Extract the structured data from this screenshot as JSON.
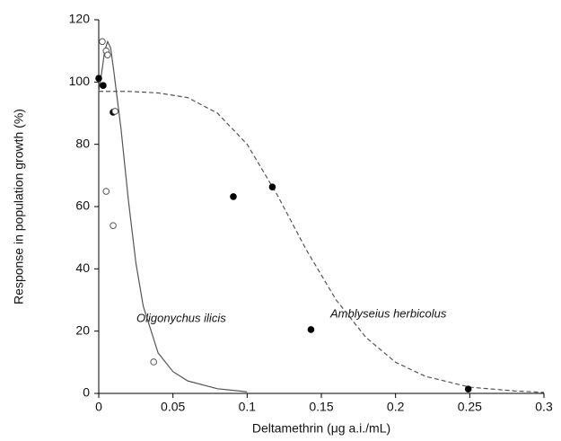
{
  "chart_data": {
    "type": "scatter",
    "x_label": "Deltamethrin (μg a.i./mL)",
    "y_label": "Response in population growth (%)",
    "annotations": [
      "Oligonychus ilicis",
      "Amblyseius herbicolus"
    ],
    "xlim": [
      0,
      0.3
    ],
    "ylim": [
      0,
      120
    ],
    "xticks": [
      0,
      0.05,
      0.1,
      0.15,
      0.2,
      0.25,
      0.3
    ],
    "yticks": [
      0,
      20,
      40,
      60,
      80,
      100,
      120
    ],
    "grid": false,
    "series": [
      {
        "kind": "points",
        "color": "#000000",
        "fill": "#000000",
        "x": [
          0,
          0.003,
          0.0097,
          0.0907,
          0.117,
          0.143,
          0.249
        ],
        "values": [
          101.2,
          98.9,
          90.3,
          63.2,
          66.3,
          20.5,
          1.4
        ]
      },
      {
        "kind": "points",
        "color": "#555555",
        "fill": "#ffffff",
        "x": [
          0.0024,
          0.005,
          0.006,
          0.011,
          0.005,
          0.0097,
          0.037
        ],
        "values": [
          113,
          110,
          108.7,
          90.6,
          64.9,
          53.9,
          10.1
        ]
      },
      {
        "kind": "line",
        "color": "#555555",
        "dashed": false,
        "x": [
          0,
          0.002,
          0.004,
          0.006,
          0.008,
          0.01,
          0.015,
          0.02,
          0.025,
          0.03,
          0.04,
          0.05,
          0.06,
          0.08,
          0.1
        ],
        "values": [
          97,
          103,
          110,
          113,
          111,
          104,
          85,
          62,
          42,
          28,
          13,
          7,
          4,
          1.5,
          0.5
        ]
      },
      {
        "kind": "line",
        "color": "#555555",
        "dashed": true,
        "x": [
          0,
          0.02,
          0.04,
          0.06,
          0.08,
          0.1,
          0.12,
          0.14,
          0.16,
          0.18,
          0.2,
          0.22,
          0.25,
          0.28,
          0.3
        ],
        "values": [
          97,
          97,
          96.5,
          95,
          90,
          80,
          64,
          46,
          30,
          18,
          10,
          5.5,
          2,
          0.8,
          0.3
        ]
      }
    ]
  }
}
